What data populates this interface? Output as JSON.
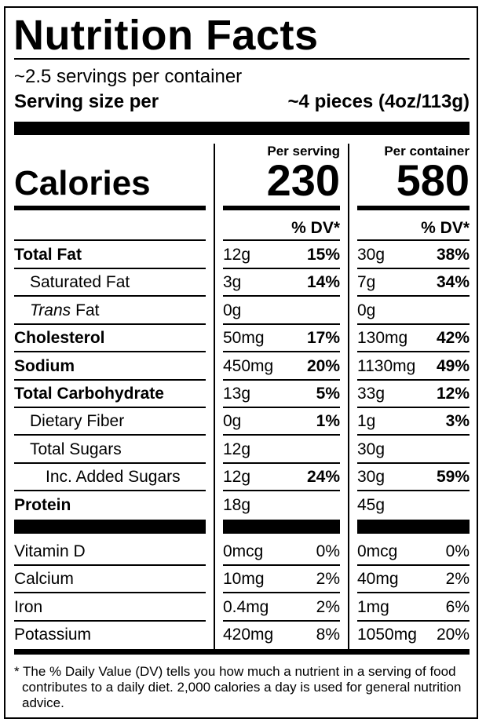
{
  "title": "Nutrition Facts",
  "servings": "~2.5 servings per container",
  "serving_size": {
    "label": "Serving size per",
    "value": "~4 pieces (4oz/113g)"
  },
  "calories": {
    "label": "Calories",
    "serving_header": "Per serving",
    "serving_value": "230",
    "container_header": "Per container",
    "container_value": "580"
  },
  "dv_header": "% DV*",
  "nutrients": [
    {
      "label": "Total Fat",
      "serving_amount": "12g",
      "serving_dv": "15%",
      "container_amount": "30g",
      "container_dv": "38%"
    },
    {
      "label": "Saturated Fat",
      "serving_amount": "3g",
      "serving_dv": "14%",
      "container_amount": "7g",
      "container_dv": "34%"
    },
    {
      "label_italic": "Trans",
      "label": "Fat",
      "serving_amount": "0g",
      "container_amount": "0g"
    },
    {
      "label": "Cholesterol",
      "serving_amount": "50mg",
      "serving_dv": "17%",
      "container_amount": "130mg",
      "container_dv": "42%"
    },
    {
      "label": "Sodium",
      "serving_amount": "450mg",
      "serving_dv": "20%",
      "container_amount": "1130mg",
      "container_dv": "49%"
    },
    {
      "label": "Total Carbohydrate",
      "serving_amount": "13g",
      "serving_dv": "5%",
      "container_amount": "33g",
      "container_dv": "12%"
    },
    {
      "label": "Dietary Fiber",
      "serving_amount": "0g",
      "serving_dv": "1%",
      "container_amount": "1g",
      "container_dv": "3%"
    },
    {
      "label": "Total Sugars",
      "serving_amount": "12g",
      "container_amount": "30g"
    },
    {
      "label": "Inc. Added Sugars",
      "serving_amount": "12g",
      "serving_dv": "24%",
      "container_amount": "30g",
      "container_dv": "59%"
    },
    {
      "label": "Protein",
      "serving_amount": "18g",
      "container_amount": "45g"
    }
  ],
  "vitamins": [
    {
      "label": "Vitamin D",
      "serving_amount": "0mcg",
      "serving_dv": "0%",
      "container_amount": "0mcg",
      "container_dv": "0%"
    },
    {
      "label": "Calcium",
      "serving_amount": "10mg",
      "serving_dv": "2%",
      "container_amount": "40mg",
      "container_dv": "2%"
    },
    {
      "label": "Iron",
      "serving_amount": "0.4mg",
      "serving_dv": "2%",
      "container_amount": "1mg",
      "container_dv": "6%"
    },
    {
      "label": "Potassium",
      "serving_amount": "420mg",
      "serving_dv": "8%",
      "container_amount": "1050mg",
      "container_dv": "20%"
    }
  ],
  "footnote": "* The % Daily Value (DV) tells you how much a nutrient in a serving of food contributes to a daily diet. 2,000 calories a day is used for general nutrition advice."
}
